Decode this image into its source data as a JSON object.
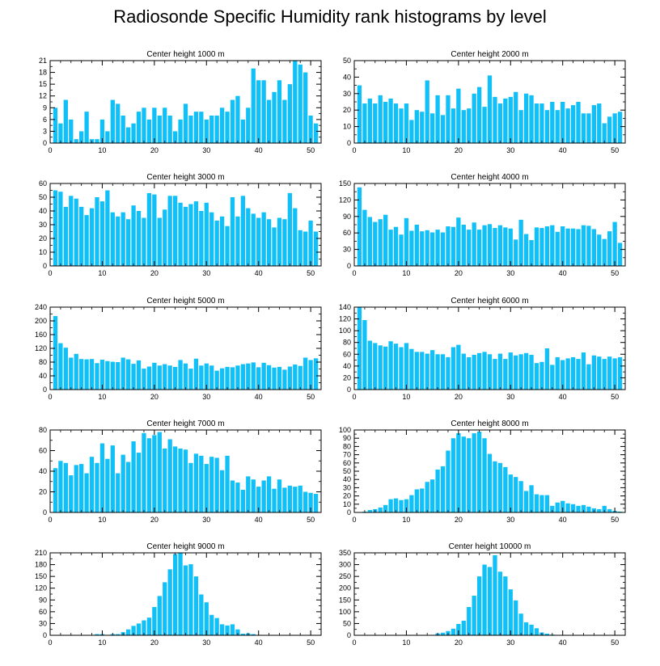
{
  "figure": {
    "title": "Radiosonde Specific Humidity rank histograms by level",
    "bar_color": "#10c0f8"
  },
  "chart_data": [
    {
      "type": "bar",
      "title": "Center height 1000 m",
      "xlim": [
        0,
        52
      ],
      "ylim": [
        0,
        21
      ],
      "xticks": [
        0,
        10,
        20,
        30,
        40,
        50
      ],
      "yticks": [
        0,
        3,
        6,
        9,
        12,
        15,
        18,
        21
      ],
      "x": [
        1,
        2,
        3,
        4,
        5,
        6,
        7,
        8,
        9,
        10,
        11,
        12,
        13,
        14,
        15,
        16,
        17,
        18,
        19,
        20,
        21,
        22,
        23,
        24,
        25,
        26,
        27,
        28,
        29,
        30,
        31,
        32,
        33,
        34,
        35,
        36,
        37,
        38,
        39,
        40,
        41,
        42,
        43,
        44,
        45,
        46,
        47,
        48,
        49,
        50,
        51
      ],
      "values": [
        9,
        5,
        11,
        6,
        1,
        3,
        8,
        1,
        1,
        6,
        3,
        11,
        10,
        7,
        4,
        5,
        8,
        9,
        6,
        9,
        7,
        9,
        7,
        3,
        6,
        10,
        7,
        8,
        8,
        6,
        7,
        7,
        9,
        8,
        11,
        12,
        6,
        9,
        19,
        16,
        16,
        11,
        13,
        16,
        11,
        15,
        21,
        20,
        18,
        7,
        5
      ]
    },
    {
      "type": "bar",
      "title": "Center height 2000 m",
      "xlim": [
        0,
        52
      ],
      "ylim": [
        0,
        50
      ],
      "xticks": [
        0,
        10,
        20,
        30,
        40,
        50
      ],
      "yticks": [
        0,
        10,
        20,
        30,
        40,
        50
      ],
      "x": [
        1,
        2,
        3,
        4,
        5,
        6,
        7,
        8,
        9,
        10,
        11,
        12,
        13,
        14,
        15,
        16,
        17,
        18,
        19,
        20,
        21,
        22,
        23,
        24,
        25,
        26,
        27,
        28,
        29,
        30,
        31,
        32,
        33,
        34,
        35,
        36,
        37,
        38,
        39,
        40,
        41,
        42,
        43,
        44,
        45,
        46,
        47,
        48,
        49,
        50,
        51
      ],
      "values": [
        35,
        24,
        27,
        24,
        29,
        25,
        27,
        24,
        21,
        24,
        14,
        20,
        19,
        38,
        18,
        29,
        17,
        29,
        21,
        33,
        20,
        21,
        30,
        34,
        22,
        41,
        28,
        24,
        27,
        28,
        31,
        20,
        30,
        29,
        24,
        24,
        20,
        25,
        20,
        25,
        21,
        23,
        25,
        18,
        18,
        23,
        24,
        12,
        16,
        18,
        19
      ]
    },
    {
      "type": "bar",
      "title": "Center height 3000 m",
      "xlim": [
        0,
        52
      ],
      "ylim": [
        0,
        60
      ],
      "xticks": [
        0,
        10,
        20,
        30,
        40,
        50
      ],
      "yticks": [
        0,
        10,
        20,
        30,
        40,
        50,
        60
      ],
      "x": [
        1,
        2,
        3,
        4,
        5,
        6,
        7,
        8,
        9,
        10,
        11,
        12,
        13,
        14,
        15,
        16,
        17,
        18,
        19,
        20,
        21,
        22,
        23,
        24,
        25,
        26,
        27,
        28,
        29,
        30,
        31,
        32,
        33,
        34,
        35,
        36,
        37,
        38,
        39,
        40,
        41,
        42,
        43,
        44,
        45,
        46,
        47,
        48,
        49,
        50,
        51
      ],
      "values": [
        55,
        54,
        43,
        51,
        49,
        43,
        37,
        42,
        50,
        47,
        55,
        39,
        36,
        39,
        34,
        44,
        40,
        35,
        53,
        52,
        35,
        41,
        51,
        51,
        46,
        43,
        45,
        47,
        40,
        46,
        39,
        33,
        36,
        29,
        50,
        36,
        51,
        42,
        38,
        35,
        39,
        34,
        28,
        35,
        34,
        53,
        42,
        26,
        25,
        33,
        25
      ]
    },
    {
      "type": "bar",
      "title": "Center height 4000 m",
      "xlim": [
        0,
        52
      ],
      "ylim": [
        0,
        150
      ],
      "xticks": [
        0,
        10,
        20,
        30,
        40,
        50
      ],
      "yticks": [
        0,
        30,
        60,
        90,
        120,
        150
      ],
      "x": [
        1,
        2,
        3,
        4,
        5,
        6,
        7,
        8,
        9,
        10,
        11,
        12,
        13,
        14,
        15,
        16,
        17,
        18,
        19,
        20,
        21,
        22,
        23,
        24,
        25,
        26,
        27,
        28,
        29,
        30,
        31,
        32,
        33,
        34,
        35,
        36,
        37,
        38,
        39,
        40,
        41,
        42,
        43,
        44,
        45,
        46,
        47,
        48,
        49,
        50,
        51
      ],
      "values": [
        143,
        102,
        89,
        80,
        85,
        93,
        66,
        71,
        57,
        87,
        64,
        75,
        63,
        65,
        61,
        66,
        61,
        72,
        71,
        88,
        75,
        66,
        79,
        66,
        74,
        76,
        69,
        74,
        70,
        68,
        48,
        84,
        58,
        47,
        70,
        69,
        72,
        74,
        62,
        72,
        68,
        68,
        67,
        74,
        73,
        67,
        57,
        49,
        63,
        80,
        42
      ]
    },
    {
      "type": "bar",
      "title": "Center height 5000 m",
      "xlim": [
        0,
        52
      ],
      "ylim": [
        0,
        240
      ],
      "xticks": [
        0,
        10,
        20,
        30,
        40,
        50
      ],
      "yticks": [
        0,
        40,
        80,
        120,
        160,
        200,
        240
      ],
      "x": [
        1,
        2,
        3,
        4,
        5,
        6,
        7,
        8,
        9,
        10,
        11,
        12,
        13,
        14,
        15,
        16,
        17,
        18,
        19,
        20,
        21,
        22,
        23,
        24,
        25,
        26,
        27,
        28,
        29,
        30,
        31,
        32,
        33,
        34,
        35,
        36,
        37,
        38,
        39,
        40,
        41,
        42,
        43,
        44,
        45,
        46,
        47,
        48,
        49,
        50,
        51
      ],
      "values": [
        214,
        135,
        122,
        93,
        104,
        89,
        88,
        89,
        77,
        87,
        83,
        81,
        80,
        93,
        88,
        75,
        85,
        61,
        67,
        78,
        70,
        74,
        70,
        66,
        86,
        76,
        61,
        90,
        70,
        76,
        70,
        55,
        62,
        66,
        65,
        70,
        74,
        76,
        79,
        65,
        78,
        71,
        64,
        66,
        58,
        67,
        73,
        69,
        93,
        86,
        91
      ]
    },
    {
      "type": "bar",
      "title": "Center height 6000 m",
      "xlim": [
        0,
        52
      ],
      "ylim": [
        0,
        140
      ],
      "xticks": [
        0,
        10,
        20,
        30,
        40,
        50
      ],
      "yticks": [
        0,
        20,
        40,
        60,
        80,
        100,
        120,
        140
      ],
      "x": [
        1,
        2,
        3,
        4,
        5,
        6,
        7,
        8,
        9,
        10,
        11,
        12,
        13,
        14,
        15,
        16,
        17,
        18,
        19,
        20,
        21,
        22,
        23,
        24,
        25,
        26,
        27,
        28,
        29,
        30,
        31,
        32,
        33,
        34,
        35,
        36,
        37,
        38,
        39,
        40,
        41,
        42,
        43,
        44,
        45,
        46,
        47,
        48,
        49,
        50,
        51
      ],
      "values": [
        140,
        118,
        83,
        79,
        75,
        73,
        82,
        78,
        72,
        79,
        69,
        64,
        64,
        61,
        67,
        60,
        60,
        55,
        72,
        76,
        61,
        55,
        59,
        62,
        64,
        60,
        52,
        61,
        52,
        63,
        58,
        60,
        62,
        59,
        45,
        47,
        70,
        42,
        55,
        50,
        53,
        55,
        52,
        63,
        43,
        58,
        56,
        52,
        56,
        53,
        55
      ]
    },
    {
      "type": "bar",
      "title": "Center height 7000 m",
      "xlim": [
        0,
        52
      ],
      "ylim": [
        0,
        80
      ],
      "xticks": [
        0,
        10,
        20,
        30,
        40,
        50
      ],
      "yticks": [
        0,
        20,
        40,
        60,
        80
      ],
      "x": [
        1,
        2,
        3,
        4,
        5,
        6,
        7,
        8,
        9,
        10,
        11,
        12,
        13,
        14,
        15,
        16,
        17,
        18,
        19,
        20,
        21,
        22,
        23,
        24,
        25,
        26,
        27,
        28,
        29,
        30,
        31,
        32,
        33,
        34,
        35,
        36,
        37,
        38,
        39,
        40,
        41,
        42,
        43,
        44,
        45,
        46,
        47,
        48,
        49,
        50,
        51
      ],
      "values": [
        43,
        50,
        48,
        36,
        46,
        47,
        38,
        54,
        48,
        67,
        52,
        65,
        38,
        56,
        49,
        69,
        58,
        77,
        72,
        75,
        78,
        62,
        71,
        64,
        62,
        61,
        48,
        57,
        55,
        47,
        54,
        53,
        41,
        55,
        31,
        29,
        22,
        35,
        32,
        25,
        31,
        35,
        23,
        32,
        24,
        26,
        25,
        26,
        20,
        19,
        18
      ]
    },
    {
      "type": "bar",
      "title": "Center height 8000 m",
      "xlim": [
        0,
        52
      ],
      "ylim": [
        0,
        100
      ],
      "xticks": [
        0,
        10,
        20,
        30,
        40,
        50
      ],
      "yticks": [
        0,
        10,
        20,
        30,
        40,
        50,
        60,
        70,
        80,
        90,
        100
      ],
      "x": [
        1,
        2,
        3,
        4,
        5,
        6,
        7,
        8,
        9,
        10,
        11,
        12,
        13,
        14,
        15,
        16,
        17,
        18,
        19,
        20,
        21,
        22,
        23,
        24,
        25,
        26,
        27,
        28,
        29,
        30,
        31,
        32,
        33,
        34,
        35,
        36,
        37,
        38,
        39,
        40,
        41,
        42,
        43,
        44,
        45,
        46,
        47,
        48,
        49,
        50,
        51
      ],
      "values": [
        0,
        1,
        3,
        4,
        6,
        9,
        16,
        17,
        15,
        16,
        21,
        28,
        29,
        37,
        40,
        52,
        56,
        75,
        90,
        96,
        92,
        90,
        96,
        98,
        90,
        71,
        62,
        60,
        55,
        46,
        43,
        38,
        26,
        33,
        22,
        21,
        21,
        8,
        12,
        14,
        11,
        10,
        8,
        9,
        7,
        5,
        4,
        8,
        4,
        2,
        1
      ]
    },
    {
      "type": "bar",
      "title": "Center height 9000 m",
      "xlim": [
        0,
        52
      ],
      "ylim": [
        0,
        210
      ],
      "xticks": [
        0,
        10,
        20,
        30,
        40,
        50
      ],
      "yticks": [
        0,
        30,
        60,
        90,
        120,
        150,
        180,
        210
      ],
      "x": [
        1,
        2,
        3,
        4,
        5,
        6,
        7,
        8,
        9,
        10,
        11,
        12,
        13,
        14,
        15,
        16,
        17,
        18,
        19,
        20,
        21,
        22,
        23,
        24,
        25,
        26,
        27,
        28,
        29,
        30,
        31,
        32,
        33,
        34,
        35,
        36,
        37,
        38,
        39,
        40,
        41,
        42,
        43,
        44,
        45,
        46,
        47,
        48,
        49,
        50,
        51
      ],
      "values": [
        0,
        0,
        0,
        0,
        0,
        0,
        0,
        0,
        3,
        3,
        1,
        3,
        3,
        8,
        15,
        24,
        30,
        38,
        45,
        72,
        100,
        135,
        168,
        207,
        209,
        178,
        181,
        150,
        104,
        84,
        52,
        44,
        28,
        25,
        28,
        15,
        4,
        5,
        3,
        1,
        1,
        0,
        0,
        0,
        0,
        0,
        0,
        0,
        0,
        0,
        0
      ]
    },
    {
      "type": "bar",
      "title": "Center height 10000 m",
      "xlim": [
        0,
        52
      ],
      "ylim": [
        0,
        350
      ],
      "xticks": [
        0,
        10,
        20,
        30,
        40,
        50
      ],
      "yticks": [
        0,
        50,
        100,
        150,
        200,
        250,
        300,
        350
      ],
      "x": [
        1,
        2,
        3,
        4,
        5,
        6,
        7,
        8,
        9,
        10,
        11,
        12,
        13,
        14,
        15,
        16,
        17,
        18,
        19,
        20,
        21,
        22,
        23,
        24,
        25,
        26,
        27,
        28,
        29,
        30,
        31,
        32,
        33,
        34,
        35,
        36,
        37,
        38,
        39,
        40,
        41,
        42,
        43,
        44,
        45,
        46,
        47,
        48,
        49,
        50,
        51
      ],
      "values": [
        0,
        0,
        0,
        0,
        0,
        0,
        0,
        0,
        0,
        0,
        0,
        0,
        0,
        0,
        0,
        8,
        11,
        18,
        28,
        48,
        62,
        120,
        168,
        250,
        300,
        290,
        340,
        270,
        250,
        195,
        148,
        92,
        55,
        45,
        30,
        12,
        7,
        3,
        1,
        1,
        0,
        0,
        0,
        0,
        0,
        0,
        0,
        0,
        0,
        0,
        0
      ]
    }
  ]
}
